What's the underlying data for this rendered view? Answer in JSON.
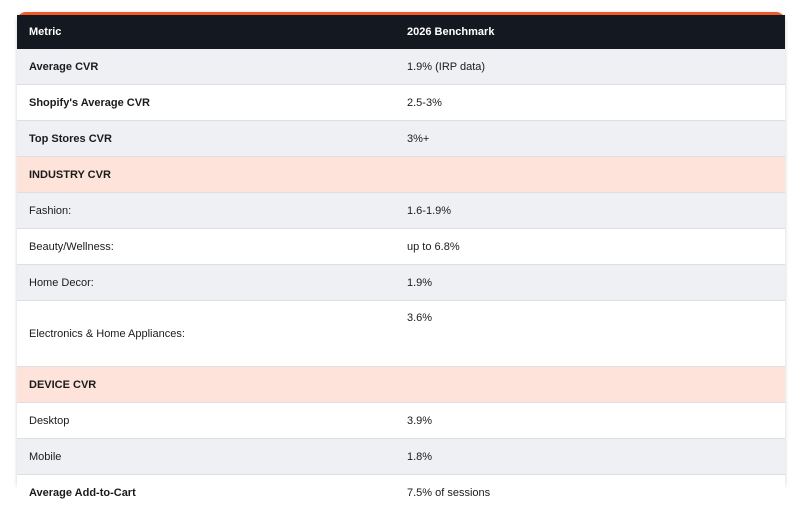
{
  "header": {
    "metric": "Metric",
    "benchmark": "2026 Benchmark"
  },
  "rows": [
    {
      "metric": "Average CVR",
      "value": "1.9% (IRP data)"
    },
    {
      "metric": "Shopify's Average CVR",
      "value": "2.5-3%"
    },
    {
      "metric": "Top Stores CVR",
      "value": "3%+"
    },
    {
      "section": "INDUSTRY CVR"
    },
    {
      "metric": "Fashion:",
      "value": "1.6-1.9%"
    },
    {
      "metric": "Beauty/Wellness:",
      "value": "up to 6.8%"
    },
    {
      "metric": "Home Decor:",
      "value": "1.9%"
    },
    {
      "metric": "Electronics & Home Appliances:",
      "value": "3.6%"
    },
    {
      "section": "DEVICE CVR"
    },
    {
      "metric": "Desktop",
      "value": "3.9%"
    },
    {
      "metric": "Mobile",
      "value": "1.8%"
    },
    {
      "metric": "Average Add-to-Cart",
      "value": "7.5% of sessions"
    }
  ],
  "colors": {
    "header_bg": "#141820",
    "accent": "#ef5a2a",
    "section_bg": "#fde3d9",
    "alt_row_bg": "#eef0f3"
  }
}
